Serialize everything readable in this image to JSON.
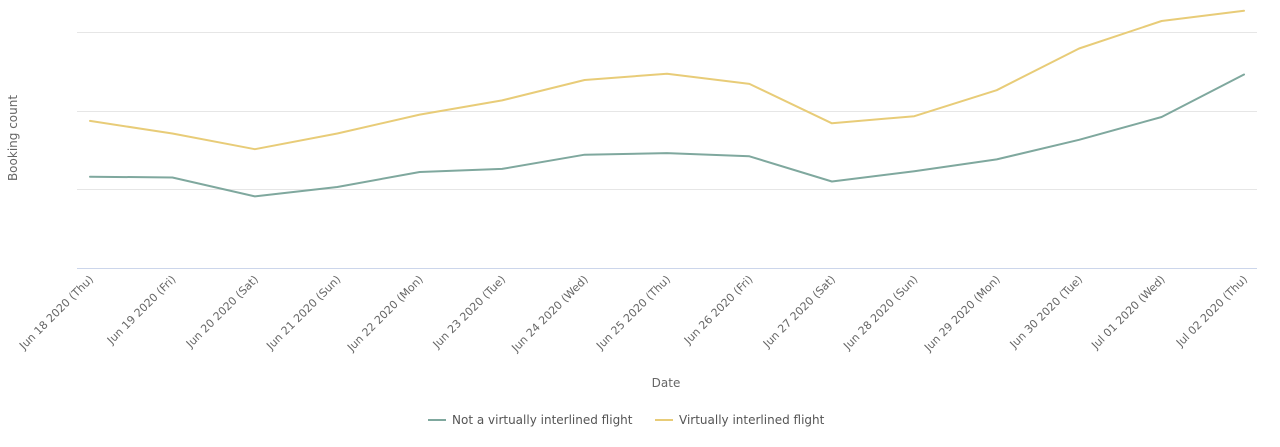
{
  "chart_data": {
    "type": "line",
    "title": "",
    "xlabel": "Date",
    "ylabel": "Booking count",
    "categories": [
      "Jun 18 2020 (Thu)",
      "Jun 19 2020 (Fri)",
      "Jun 20 2020 (Sat)",
      "Jun 21 2020 (Sun)",
      "Jun 22 2020 (Mon)",
      "Jun 23 2020 (Tue)",
      "Jun 24 2020 (Wed)",
      "Jun 25 2020 (Thu)",
      "Jun 26 2020 (Fri)",
      "Jun 27 2020 (Sat)",
      "Jun 28 2020 (Sun)",
      "Jun 29 2020 (Mon)",
      "Jun 30 2020 (Tue)",
      "Jul 01 2020 (Wed)",
      "Jul 02 2020 (Thu)"
    ],
    "series": [
      {
        "name": "Not a virtually interlined flight",
        "color": "#7fa89e",
        "values": [
          1.16,
          1.15,
          0.91,
          1.03,
          1.22,
          1.26,
          1.44,
          1.46,
          1.42,
          1.1,
          1.23,
          1.38,
          1.63,
          1.92,
          2.46
        ]
      },
      {
        "name": "Virtually interlined flight",
        "color": "#e8cc78",
        "values": [
          1.87,
          1.71,
          1.51,
          1.71,
          1.95,
          2.13,
          2.39,
          2.47,
          2.34,
          1.84,
          1.93,
          2.26,
          2.79,
          3.14,
          3.27
        ]
      }
    ],
    "ylim": [
      0,
      3
    ],
    "yticks": [
      0,
      1,
      2,
      3
    ],
    "show_y_tick_labels": false,
    "grid": true,
    "legend": {
      "position": "bottom-center",
      "entries": [
        "Not a virtually interlined flight",
        "Virtually interlined flight"
      ]
    },
    "colors": {
      "grid": "#e6e6e6",
      "axis": "#ccd6eb",
      "text": "#666666"
    }
  }
}
